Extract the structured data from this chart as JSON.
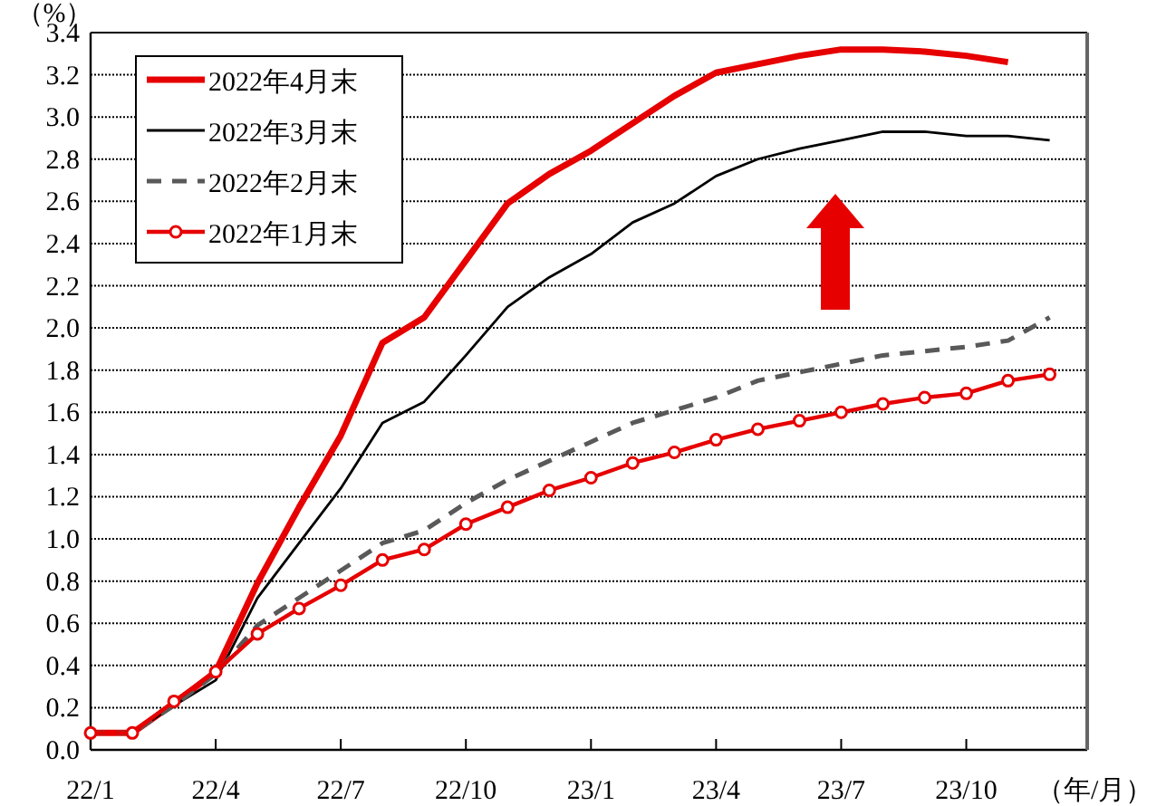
{
  "chart_data": {
    "type": "line",
    "ylabel": "（%）",
    "xlabel": "（年/月）",
    "categories": [
      "22/1",
      null,
      null,
      "22/4",
      null,
      null,
      "22/7",
      null,
      null,
      "22/10",
      null,
      null,
      "23/1",
      null,
      null,
      "23/4",
      null,
      null,
      "23/7",
      null,
      null,
      "23/10",
      null,
      null
    ],
    "series": [
      {
        "name": "2022年4月末",
        "color": "#e60000",
        "line_style": "solid",
        "marker": "none",
        "values": [
          0.08,
          0.08,
          0.22,
          0.37,
          0.79,
          1.15,
          1.49,
          1.93,
          2.05,
          2.32,
          2.59,
          2.73,
          2.84,
          2.97,
          3.1,
          3.21,
          3.25,
          3.29,
          3.32,
          3.32,
          3.31,
          3.29,
          3.26,
          null
        ]
      },
      {
        "name": "2022年3月末",
        "color": "#000000",
        "line_style": "solid",
        "marker": "none",
        "values": [
          0.08,
          0.08,
          0.21,
          0.33,
          0.72,
          0.98,
          1.24,
          1.55,
          1.65,
          1.87,
          2.1,
          2.24,
          2.35,
          2.5,
          2.59,
          2.72,
          2.8,
          2.85,
          2.89,
          2.93,
          2.93,
          2.91,
          2.91,
          2.89
        ]
      },
      {
        "name": "2022年2月末",
        "color": "#595959",
        "line_style": "dashed",
        "marker": "none",
        "values": [
          0.08,
          0.08,
          0.21,
          0.36,
          0.59,
          0.72,
          0.85,
          0.98,
          1.04,
          1.17,
          1.28,
          1.37,
          1.46,
          1.55,
          1.61,
          1.67,
          1.75,
          1.79,
          1.83,
          1.87,
          1.89,
          1.91,
          1.94,
          2.05
        ]
      },
      {
        "name": "2022年1月末",
        "color": "#e60000",
        "line_style": "solid",
        "marker": "circle",
        "values": [
          0.08,
          0.08,
          0.23,
          0.37,
          0.55,
          0.67,
          0.78,
          0.9,
          0.95,
          1.07,
          1.15,
          1.23,
          1.29,
          1.36,
          1.41,
          1.47,
          1.52,
          1.56,
          1.6,
          1.64,
          1.67,
          1.69,
          1.75,
          1.78
        ]
      }
    ],
    "ylim": [
      0,
      3.4
    ],
    "yticks": [
      {
        "value": 0,
        "label": "0.0"
      },
      0.2,
      0.4,
      0.6,
      0.8,
      {
        "value": 1,
        "label": "1.0"
      },
      1.2,
      1.4,
      1.6,
      1.8,
      {
        "value": 2,
        "label": "2.0"
      },
      2.2,
      2.4,
      2.6,
      2.8,
      {
        "value": 3,
        "label": "3.0"
      },
      3.2,
      3.4
    ],
    "grid": "y",
    "legend": "top left"
  }
}
